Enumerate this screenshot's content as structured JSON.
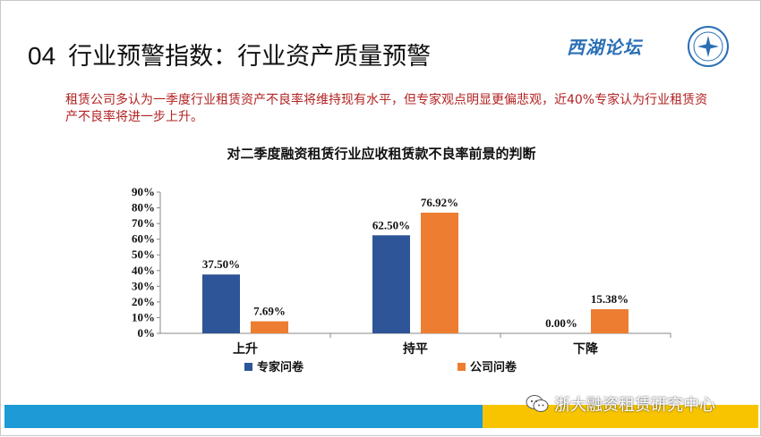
{
  "slide": {
    "title_number": "04",
    "title_text": "行业预警指数：行业资产质量预警",
    "logo_text": "西湖论坛",
    "description": "租赁公司多认为一季度行业租赁资产不良率将维持现有水平，但专家观点明显更偏悲观，近40%专家认为行业租赁资产不良率将进一步上升。",
    "footer_text": "浙大融资租赁研究中心",
    "wechat_icon": "wechat-icon",
    "colors": {
      "footer_blue": "#1e9ad6",
      "footer_yellow": "#f8c400",
      "description": "#b22222"
    }
  },
  "chart_data": {
    "type": "bar",
    "title": "对二季度融资租赁行业应收租赁款不良率前景的判断",
    "categories": [
      "上升",
      "持平",
      "下降"
    ],
    "series": [
      {
        "name": "专家问卷",
        "values": [
          37.5,
          62.5,
          0.0
        ],
        "labels": [
          "37.50%",
          "62.50%",
          "0.00%"
        ],
        "color": "#2e5597"
      },
      {
        "name": "公司问卷",
        "values": [
          7.69,
          76.92,
          15.38
        ],
        "labels": [
          "7.69%",
          "76.92%",
          "15.38%"
        ],
        "color": "#ed7d31"
      }
    ],
    "ylim": [
      0,
      90
    ],
    "yticks": [
      "0%",
      "10%",
      "20%",
      "30%",
      "40%",
      "50%",
      "60%",
      "70%",
      "80%",
      "90%"
    ],
    "grid": false,
    "legend": "bottom"
  }
}
